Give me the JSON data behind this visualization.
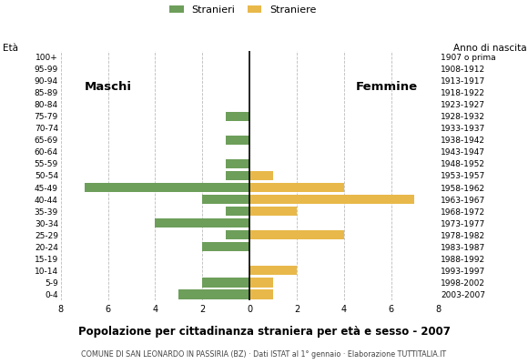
{
  "age_groups": [
    "0-4",
    "5-9",
    "10-14",
    "15-19",
    "20-24",
    "25-29",
    "30-34",
    "35-39",
    "40-44",
    "45-49",
    "50-54",
    "55-59",
    "60-64",
    "65-69",
    "70-74",
    "75-79",
    "80-84",
    "85-89",
    "90-94",
    "95-99",
    "100+"
  ],
  "birth_years": [
    "2003-2007",
    "1998-2002",
    "1993-1997",
    "1988-1992",
    "1983-1987",
    "1978-1982",
    "1973-1977",
    "1968-1972",
    "1963-1967",
    "1958-1962",
    "1953-1957",
    "1948-1952",
    "1943-1947",
    "1938-1942",
    "1933-1937",
    "1928-1932",
    "1923-1927",
    "1918-1922",
    "1913-1917",
    "1908-1912",
    "1907 o prima"
  ],
  "males": [
    3,
    2,
    0,
    0,
    2,
    1,
    4,
    1,
    2,
    7,
    1,
    1,
    0,
    1,
    0,
    1,
    0,
    0,
    0,
    0,
    0
  ],
  "females": [
    1,
    1,
    2,
    0,
    0,
    4,
    0,
    2,
    7,
    4,
    1,
    0,
    0,
    0,
    0,
    0,
    0,
    0,
    0,
    0,
    0
  ],
  "male_color": "#6d9e5a",
  "female_color": "#e8b94a",
  "title": "Popolazione per cittadinanza straniera per età e sesso - 2007",
  "subtitle": "COMUNE DI SAN LEONARDO IN PASSIRIA (BZ) · Dati ISTAT al 1° gennaio · Elaborazione TUTTITALIA.IT",
  "legend_male": "Stranieri",
  "legend_female": "Straniere",
  "label_eta": "Età",
  "label_anno": "Anno di nascita",
  "label_maschi": "Maschi",
  "label_femmine": "Femmine",
  "xmax": 8,
  "bg_color": "#ffffff",
  "grid_color": "#bbbbbb"
}
